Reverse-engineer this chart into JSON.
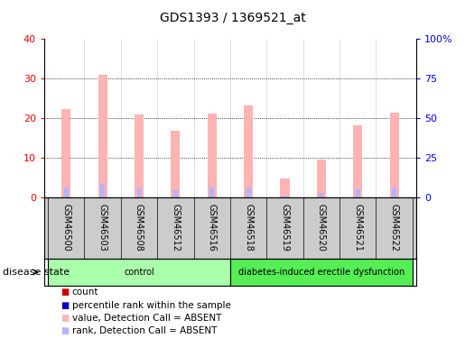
{
  "title": "GDS1393 / 1369521_at",
  "samples": [
    "GSM46500",
    "GSM46503",
    "GSM46508",
    "GSM46512",
    "GSM46516",
    "GSM46518",
    "GSM46519",
    "GSM46520",
    "GSM46521",
    "GSM46522"
  ],
  "value_absent": [
    22.3,
    31.0,
    21.0,
    16.8,
    21.2,
    23.3,
    4.8,
    9.7,
    18.2,
    21.5
  ],
  "rank_absent": [
    6.5,
    8.7,
    6.3,
    5.0,
    6.3,
    6.3,
    1.3,
    3.0,
    5.2,
    6.3
  ],
  "ylim_left": [
    0,
    40
  ],
  "ylim_right": [
    0,
    100
  ],
  "yticks_left": [
    0,
    10,
    20,
    30,
    40
  ],
  "yticks_right": [
    0,
    25,
    50,
    75,
    100
  ],
  "yticklabels_right": [
    "0",
    "25",
    "50",
    "75",
    "100%"
  ],
  "groups": [
    {
      "label": "control",
      "start": 0,
      "end": 4,
      "color": "#aaffaa"
    },
    {
      "label": "diabetes-induced erectile dysfunction",
      "start": 5,
      "end": 9,
      "color": "#55ee55"
    }
  ],
  "bar_width": 0.25,
  "rank_bar_width": 0.12,
  "color_value_absent": "#ffb3b3",
  "color_rank_absent": "#b3b3ff",
  "color_count": "#cc0000",
  "color_percentile": "#0000cc",
  "bg_plot": "#ffffff",
  "bg_sample_labels": "#cccccc",
  "disease_state_label": "disease state",
  "legend_items": [
    {
      "label": "count",
      "color": "#cc0000"
    },
    {
      "label": "percentile rank within the sample",
      "color": "#0000cc"
    },
    {
      "label": "value, Detection Call = ABSENT",
      "color": "#ffb3b3"
    },
    {
      "label": "rank, Detection Call = ABSENT",
      "color": "#b3b3ff"
    }
  ]
}
